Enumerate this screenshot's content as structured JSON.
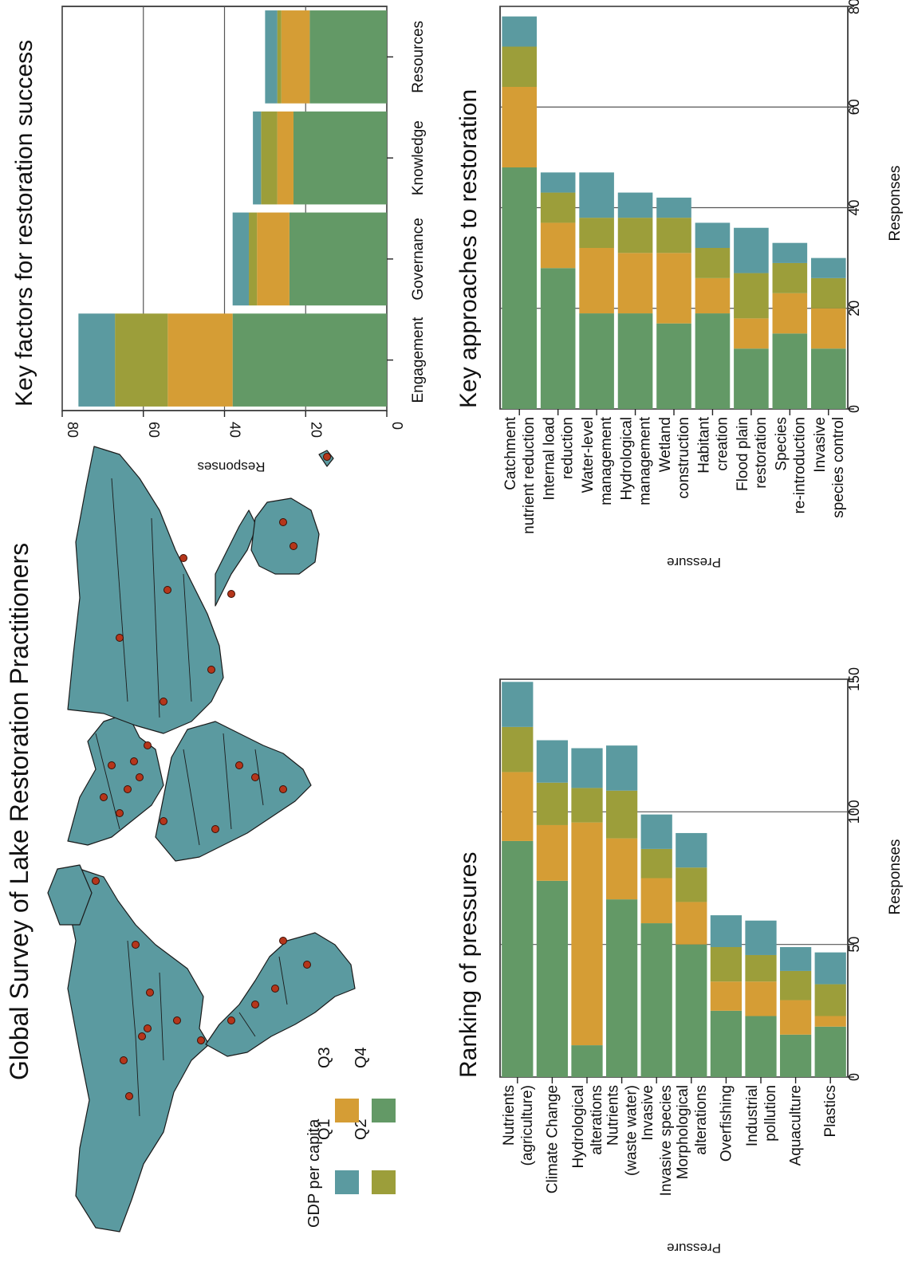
{
  "figure_title": "Global Survey of Lake Restoration Practitioners",
  "legend": {
    "title": "GDP per capita",
    "items": [
      {
        "label": "Q1",
        "color": "#5b9aa0"
      },
      {
        "label": "Q2",
        "color": "#9c9e3a"
      },
      {
        "label": "Q3",
        "color": "#d59d35"
      },
      {
        "label": "Q4",
        "color": "#639966"
      }
    ]
  },
  "map": {
    "name": "world-map",
    "marker_color": "#b5361b",
    "land_color": "#5b9aa0"
  },
  "chart_data": [
    {
      "type": "bar",
      "stacked": true,
      "title": "Key factors for restoration success",
      "xlabel": "",
      "ylabel": "Responses",
      "ylim": [
        0,
        80
      ],
      "yticks": [
        0,
        20,
        40,
        60,
        80
      ],
      "categories": [
        "Engagement",
        "Governance",
        "Knowledge",
        "Resources"
      ],
      "series": [
        {
          "name": "Q4",
          "color": "#639966",
          "values": [
            38,
            24,
            23,
            19
          ]
        },
        {
          "name": "Q3",
          "color": "#d59d35",
          "values": [
            16,
            8,
            4,
            7
          ]
        },
        {
          "name": "Q2",
          "color": "#9c9e3a",
          "values": [
            13,
            2,
            4,
            1
          ]
        },
        {
          "name": "Q1",
          "color": "#5b9aa0",
          "values": [
            9,
            4,
            2,
            3
          ]
        }
      ],
      "grid": true
    },
    {
      "type": "bar",
      "stacked": true,
      "title": "Key approaches to restoration",
      "xlabel": "Pressure",
      "ylabel": "Responses",
      "ylim": [
        0,
        80
      ],
      "yticks": [
        0,
        20,
        40,
        60,
        80
      ],
      "categories": [
        "Catchment\nnutrient reduction",
        "Internal load\nreduction",
        "Water-level\nmanagement",
        "Hydrological\nmanagement",
        "Wetland\nconstruction",
        "Habitant\ncreation",
        "Flood plain\nrestoration",
        "Species\nre-introduction",
        "Invasive\nspecies control"
      ],
      "series": [
        {
          "name": "Q4",
          "color": "#639966",
          "values": [
            48,
            28,
            19,
            19,
            17,
            19,
            12,
            15,
            12
          ]
        },
        {
          "name": "Q3",
          "color": "#d59d35",
          "values": [
            16,
            9,
            13,
            12,
            14,
            7,
            6,
            8,
            8
          ]
        },
        {
          "name": "Q2",
          "color": "#9c9e3a",
          "values": [
            8,
            6,
            6,
            7,
            7,
            6,
            9,
            6,
            6
          ]
        },
        {
          "name": "Q1",
          "color": "#5b9aa0",
          "values": [
            6,
            4,
            9,
            5,
            4,
            5,
            9,
            4,
            4
          ]
        }
      ],
      "grid": true
    },
    {
      "type": "bar",
      "stacked": true,
      "title": "Ranking of pressures",
      "xlabel": "Pressure",
      "ylabel": "Responses",
      "ylim": [
        0,
        150
      ],
      "yticks": [
        0,
        50,
        100,
        150
      ],
      "categories": [
        "Nutrients\n(agriculture)",
        "Climate Change",
        "Hydrological\nalterations",
        "Nutrients\n(waste water)",
        "Invasive\nInvasive species",
        "Morphological\nalterations",
        "Overfishing",
        "Industrial\npollution",
        "Aquaculture",
        "Plastics"
      ],
      "series": [
        {
          "name": "Q4",
          "color": "#639966",
          "values": [
            89,
            74,
            12,
            67,
            58,
            50,
            25,
            23,
            16,
            19
          ]
        },
        {
          "name": "Q3",
          "color": "#d59d35",
          "values": [
            26,
            21,
            84,
            23,
            17,
            16,
            11,
            13,
            13,
            4
          ]
        },
        {
          "name": "Q2",
          "color": "#9c9e3a",
          "values": [
            17,
            16,
            13,
            18,
            11,
            13,
            13,
            10,
            11,
            12
          ]
        },
        {
          "name": "Q1",
          "color": "#5b9aa0",
          "values": [
            17,
            16,
            15,
            17,
            13,
            13,
            12,
            13,
            9,
            12
          ]
        }
      ],
      "grid": true
    }
  ]
}
